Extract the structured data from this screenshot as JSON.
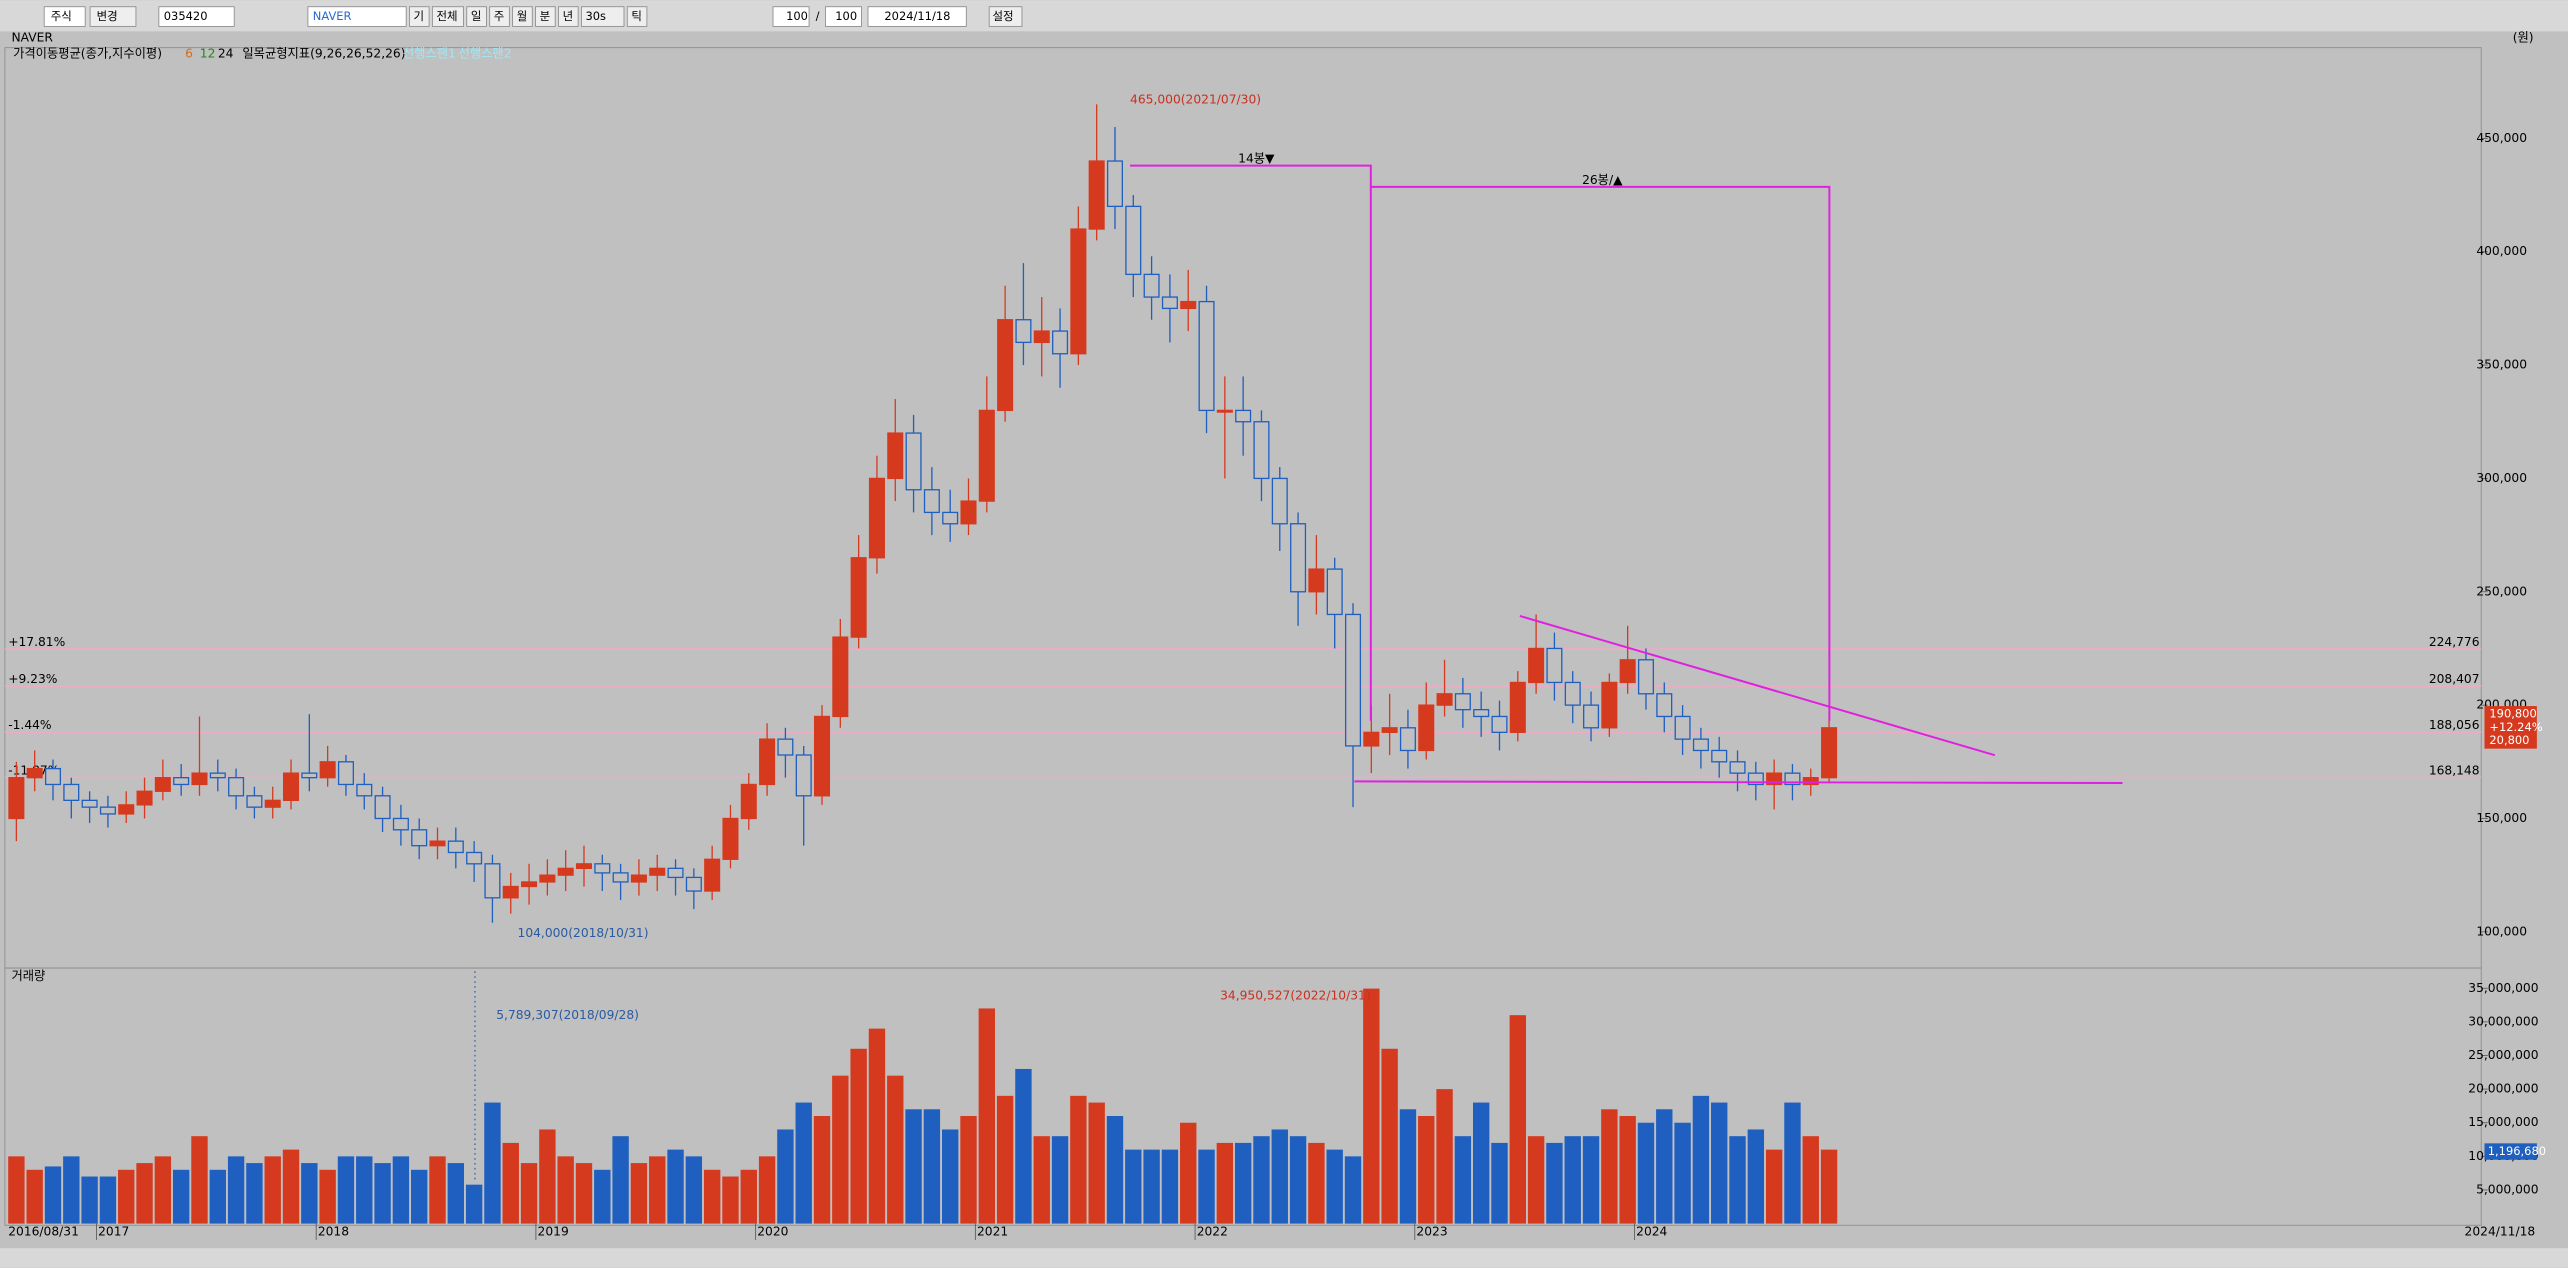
{
  "toolbar": {
    "market": "주식",
    "change": "변경",
    "code": "035420",
    "name": "NAVER",
    "period": [
      "기",
      "전체",
      "일",
      "주",
      "월",
      "분",
      "년",
      "30s",
      "틱"
    ],
    "count": "100",
    "sep": "/",
    "count2": "100",
    "date": "2024/11/18",
    "settings": "설정"
  },
  "unit": "(원)",
  "legend": {
    "ma": "가격이동평균(종가,지수이평)",
    "ma_periods": [
      "6",
      "12",
      "24"
    ],
    "ichimoku": "일목균형지표(9,26,26,52,26)",
    "span1": "선행스팬1",
    "span2": "선행스팬2"
  },
  "chart_data": [
    {
      "type": "candlestick",
      "title": "NAVER",
      "up_color": "#d63a1e",
      "down_color": "#1f5fbf",
      "xlim": [
        0,
        99
      ],
      "ylim": [
        84000,
        490000
      ],
      "yticks": [
        {
          "value": 100000,
          "label": "100,000"
        },
        {
          "value": 150000,
          "label": "150,000"
        },
        {
          "value": 200000,
          "label": "200,000"
        },
        {
          "value": 250000,
          "label": "250,000"
        },
        {
          "value": 300000,
          "label": "300,000"
        },
        {
          "value": 350000,
          "label": "350,000"
        },
        {
          "value": 400000,
          "label": "400,000"
        },
        {
          "value": 450000,
          "label": "450,000"
        }
      ],
      "open": [
        150000,
        168000,
        172000,
        165000,
        158000,
        155000,
        152000,
        156000,
        162000,
        168000,
        165000,
        170000,
        168000,
        160000,
        155000,
        158000,
        170000,
        168000,
        175000,
        165000,
        160000,
        150000,
        145000,
        138000,
        140000,
        135000,
        130000,
        115000,
        120000,
        122000,
        125000,
        128000,
        130000,
        126000,
        122000,
        125000,
        128000,
        124000,
        118000,
        132000,
        150000,
        165000,
        185000,
        178000,
        160000,
        195000,
        230000,
        265000,
        300000,
        320000,
        295000,
        285000,
        280000,
        290000,
        330000,
        370000,
        360000,
        365000,
        355000,
        410000,
        440000,
        420000,
        390000,
        380000,
        375000,
        378000,
        330000,
        330000,
        325000,
        300000,
        280000,
        250000,
        260000,
        240000,
        182000,
        188000,
        190000,
        180000,
        200000,
        205000,
        198000,
        195000,
        188000,
        210000,
        225000,
        210000,
        200000,
        190000,
        210000,
        220000,
        205000,
        195000,
        185000,
        180000,
        175000,
        170000,
        165000,
        170000,
        165000,
        168000
      ],
      "high": [
        175000,
        180000,
        176000,
        168000,
        162000,
        160000,
        162000,
        168000,
        176000,
        174000,
        195000,
        176000,
        172000,
        164000,
        164000,
        176000,
        196000,
        182000,
        178000,
        170000,
        164000,
        156000,
        150000,
        146000,
        146000,
        140000,
        134000,
        126000,
        130000,
        132000,
        136000,
        138000,
        134000,
        130000,
        132000,
        134000,
        132000,
        128000,
        138000,
        156000,
        170000,
        192000,
        190000,
        182000,
        200000,
        238000,
        275000,
        310000,
        335000,
        328000,
        305000,
        295000,
        300000,
        345000,
        385000,
        395000,
        380000,
        375000,
        420000,
        465000,
        455000,
        425000,
        398000,
        390000,
        392000,
        385000,
        345000,
        345000,
        330000,
        305000,
        285000,
        275000,
        265000,
        245000,
        200000,
        205000,
        198000,
        210000,
        220000,
        212000,
        206000,
        202000,
        215000,
        240000,
        232000,
        215000,
        206000,
        214000,
        235000,
        225000,
        210000,
        200000,
        190000,
        186000,
        180000,
        175000,
        176000,
        174000,
        172000,
        196000
      ],
      "low": [
        140000,
        162000,
        158000,
        150000,
        148000,
        146000,
        148000,
        150000,
        158000,
        160000,
        160000,
        162000,
        154000,
        150000,
        150000,
        154000,
        162000,
        164000,
        160000,
        154000,
        144000,
        138000,
        132000,
        132000,
        128000,
        122000,
        104000,
        108000,
        112000,
        116000,
        118000,
        120000,
        118000,
        114000,
        116000,
        118000,
        116000,
        110000,
        114000,
        128000,
        145000,
        160000,
        168000,
        138000,
        156000,
        190000,
        225000,
        258000,
        290000,
        285000,
        275000,
        272000,
        275000,
        285000,
        325000,
        350000,
        345000,
        340000,
        350000,
        405000,
        410000,
        380000,
        370000,
        360000,
        365000,
        320000,
        300000,
        310000,
        290000,
        268000,
        235000,
        240000,
        225000,
        155000,
        170000,
        178000,
        172000,
        176000,
        195000,
        190000,
        186000,
        180000,
        184000,
        205000,
        202000,
        192000,
        184000,
        186000,
        205000,
        198000,
        188000,
        178000,
        172000,
        168000,
        162000,
        158000,
        154000,
        158000,
        160000,
        166000
      ],
      "close": [
        168000,
        172000,
        165000,
        158000,
        155000,
        152000,
        156000,
        162000,
        168000,
        165000,
        170000,
        168000,
        160000,
        155000,
        158000,
        170000,
        168000,
        175000,
        165000,
        160000,
        150000,
        145000,
        138000,
        140000,
        135000,
        130000,
        115000,
        120000,
        122000,
        125000,
        128000,
        130000,
        126000,
        122000,
        125000,
        128000,
        124000,
        118000,
        132000,
        150000,
        165000,
        185000,
        178000,
        160000,
        195000,
        230000,
        265000,
        300000,
        320000,
        295000,
        285000,
        280000,
        290000,
        330000,
        370000,
        360000,
        365000,
        355000,
        410000,
        440000,
        420000,
        390000,
        380000,
        375000,
        378000,
        330000,
        330000,
        325000,
        300000,
        280000,
        250000,
        260000,
        240000,
        182000,
        188000,
        190000,
        180000,
        200000,
        205000,
        198000,
        195000,
        188000,
        210000,
        225000,
        210000,
        200000,
        190000,
        210000,
        220000,
        205000,
        195000,
        185000,
        180000,
        175000,
        170000,
        165000,
        170000,
        165000,
        168000,
        190000
      ],
      "levels": [
        {
          "label": "+17.81%",
          "value": 224776,
          "value_label": "224,776"
        },
        {
          "label": "+9.23%",
          "value": 208407,
          "value_label": "208,407"
        },
        {
          "label": "-1.44%",
          "value": 188056,
          "value_label": "188,056"
        },
        {
          "label": "-11.87%",
          "value": 168148,
          "value_label": "168,148"
        }
      ],
      "level_color": "#f4a8c8",
      "annotations": {
        "high": "465,000(2021/07/30)",
        "low": "104,000(2018/10/31)",
        "count1": "14봉▼",
        "count2": "26봉/▲"
      },
      "last": {
        "price": "190,800",
        "change_pct": "+12.24%",
        "change": "20,800"
      }
    },
    {
      "type": "bar",
      "title": "거래량",
      "xlim": [
        0,
        99
      ],
      "ylim": [
        0,
        38000000
      ],
      "yticks": [
        {
          "value": 5000000,
          "label": "5,000,000"
        },
        {
          "value": 10000000,
          "label": "10,000,000"
        },
        {
          "value": 15000000,
          "label": "15,000,000"
        },
        {
          "value": 20000000,
          "label": "20,000,000"
        },
        {
          "value": 25000000,
          "label": "25,000,000"
        },
        {
          "value": 30000000,
          "label": "30,000,000"
        },
        {
          "value": 35000000,
          "label": "35,000,000"
        }
      ],
      "xticks": [
        {
          "value": 5,
          "label": "2017"
        },
        {
          "value": 17,
          "label": "2018"
        },
        {
          "value": 29,
          "label": "2019"
        },
        {
          "value": 41,
          "label": "2020"
        },
        {
          "value": 53,
          "label": "2021"
        },
        {
          "value": 65,
          "label": "2022"
        },
        {
          "value": 77,
          "label": "2023"
        },
        {
          "value": 89,
          "label": "2024"
        }
      ],
      "start_label": "2016/08/31",
      "end_label": "2024/11/18",
      "values": [
        10000000,
        8000000,
        8500000,
        10000000,
        7000000,
        7000000,
        8000000,
        9000000,
        10000000,
        8000000,
        13000000,
        8000000,
        10000000,
        9000000,
        10000000,
        11000000,
        9000000,
        8000000,
        10000000,
        10000000,
        9000000,
        10000000,
        8000000,
        10000000,
        9000000,
        5789307,
        18000000,
        12000000,
        9000000,
        14000000,
        10000000,
        9000000,
        8000000,
        13000000,
        9000000,
        10000000,
        11000000,
        10000000,
        8000000,
        7000000,
        8000000,
        10000000,
        14000000,
        18000000,
        16000000,
        22000000,
        26000000,
        29000000,
        22000000,
        17000000,
        17000000,
        14000000,
        16000000,
        32000000,
        19000000,
        23000000,
        13000000,
        13000000,
        19000000,
        18000000,
        16000000,
        11000000,
        11000000,
        11000000,
        15000000,
        11000000,
        12000000,
        12000000,
        13000000,
        14000000,
        13000000,
        12000000,
        11000000,
        10000000,
        34950527,
        26000000,
        17000000,
        16000000,
        20000000,
        13000000,
        18000000,
        12000000,
        31000000,
        13000000,
        12000000,
        13000000,
        13000000,
        17000000,
        16000000,
        15000000,
        17000000,
        15000000,
        19000000,
        18000000,
        13000000,
        14000000,
        11000000,
        18000000,
        13000000,
        11000000
      ],
      "annotations": {
        "max": "34,950,527(2022/10/31)",
        "min": "5,789,307(2018/09/28)"
      },
      "last": "1,196,680"
    }
  ]
}
